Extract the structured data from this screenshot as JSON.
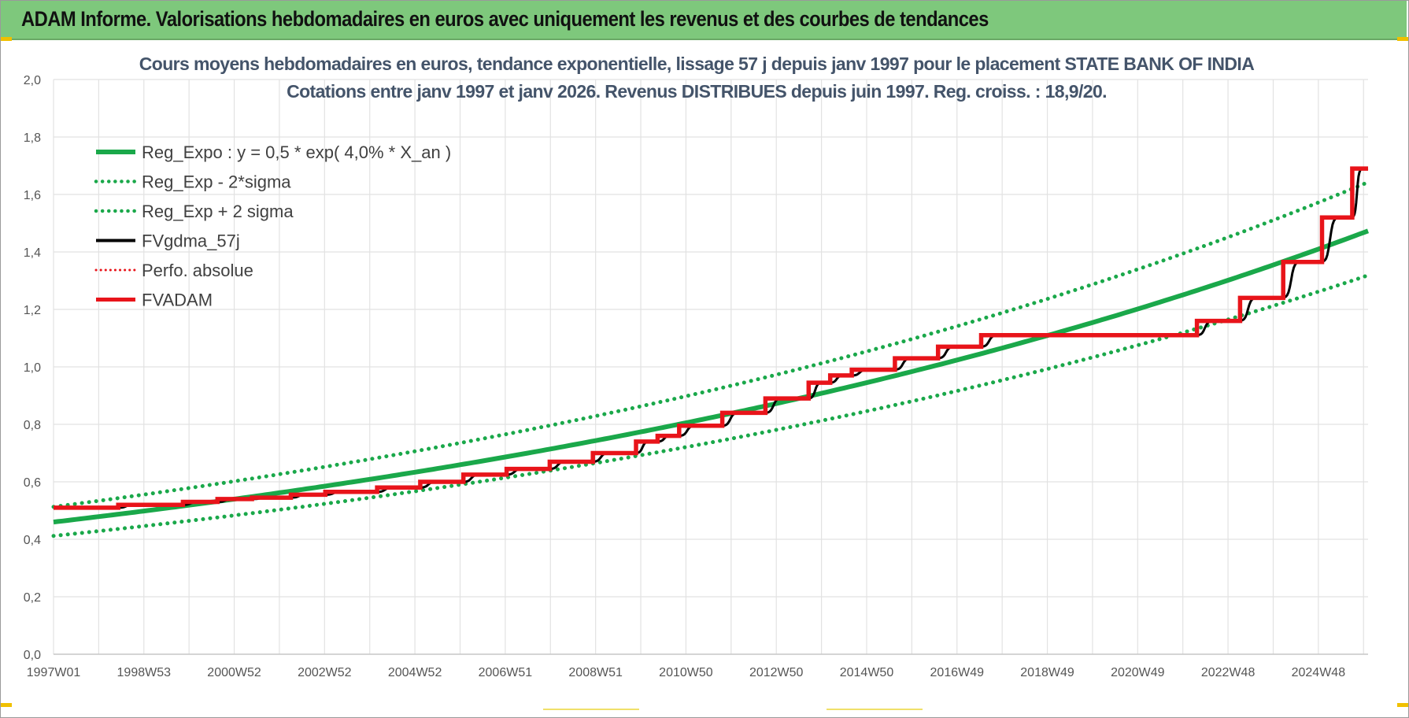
{
  "banner": {
    "title": "ADAM Informe. Valorisations hebdomadaires en euros avec uniquement les revenus et des courbes de tendances"
  },
  "colors": {
    "banner_bg": "#7ec87c",
    "reg_green": "#1aa84a",
    "black": "#000000",
    "red": "#e8141a",
    "grid": "#e2e2e2"
  },
  "chart_data": {
    "type": "line",
    "title": "Cours moyens hebdomadaires en euros, tendance exponentielle, lissage 57 j depuis janv 1997 pour le placement STATE BANK OF INDIA",
    "subtitle": "Cotations entre janv 1997 et janv 2026. Revenus DISTRIBUES depuis juin 1997. Reg. croiss. : 18,9/20.",
    "x_range": [
      1997.0,
      2026.1
    ],
    "x_ticks": [
      {
        "label": "1997W01",
        "x": 1997.0
      },
      {
        "label": "1998W53",
        "x": 1999.0
      },
      {
        "label": "2000W52",
        "x": 2001.0
      },
      {
        "label": "2002W52",
        "x": 2003.0
      },
      {
        "label": "2004W52",
        "x": 2005.0
      },
      {
        "label": "2006W51",
        "x": 2007.0
      },
      {
        "label": "2008W51",
        "x": 2009.0
      },
      {
        "label": "2010W50",
        "x": 2011.0
      },
      {
        "label": "2012W50",
        "x": 2013.0
      },
      {
        "label": "2014W50",
        "x": 2015.0
      },
      {
        "label": "2016W49",
        "x": 2017.0
      },
      {
        "label": "2018W49",
        "x": 2019.0
      },
      {
        "label": "2020W49",
        "x": 2021.0
      },
      {
        "label": "2022W48",
        "x": 2023.0
      },
      {
        "label": "2024W48",
        "x": 2025.0
      }
    ],
    "ylim": [
      0,
      2.0
    ],
    "y_ticks": [
      "0,0",
      "0,2",
      "0,4",
      "0,6",
      "0,8",
      "1,0",
      "1,2",
      "1,4",
      "1,6",
      "1,8",
      "2,0"
    ],
    "grid": true,
    "legend_position": "top-left",
    "regression": {
      "a": 0.46,
      "rate": 0.04,
      "sigma_factor_low": 0.895,
      "sigma_factor_high": 1.115
    },
    "series": [
      {
        "name": "Reg_Expo : y = 0,5 * exp( 4,0% *  X_an )",
        "style": "solid-green"
      },
      {
        "name": "Reg_Exp - 2*sigma",
        "style": "dotted-green"
      },
      {
        "name": "Reg_Exp + 2 sigma",
        "style": "dotted-green"
      },
      {
        "name": "FVgdma_57j",
        "style": "solid-black"
      },
      {
        "name": "Perfo. absolue",
        "style": "dotted-red"
      },
      {
        "name": "FVADAM",
        "style": "solid-red",
        "steps": [
          [
            1997.0,
            0.51
          ],
          [
            1998.5,
            0.52
          ],
          [
            2000.0,
            0.53
          ],
          [
            2000.8,
            0.54
          ],
          [
            2001.6,
            0.545
          ],
          [
            2002.5,
            0.555
          ],
          [
            2003.3,
            0.565
          ],
          [
            2004.5,
            0.58
          ],
          [
            2005.5,
            0.6
          ],
          [
            2006.5,
            0.625
          ],
          [
            2007.5,
            0.645
          ],
          [
            2008.5,
            0.67
          ],
          [
            2009.5,
            0.7
          ],
          [
            2010.5,
            0.74
          ],
          [
            2011.0,
            0.76
          ],
          [
            2011.5,
            0.795
          ],
          [
            2012.5,
            0.84
          ],
          [
            2013.5,
            0.89
          ],
          [
            2014.5,
            0.945
          ],
          [
            2015.0,
            0.97
          ],
          [
            2015.5,
            0.99
          ],
          [
            2016.5,
            1.03
          ],
          [
            2017.5,
            1.07
          ],
          [
            2018.5,
            1.11
          ],
          [
            2023.5,
            1.16
          ],
          [
            2024.5,
            1.24
          ],
          [
            2025.5,
            1.365
          ],
          [
            2026.4,
            1.52
          ],
          [
            2027.1,
            1.69
          ]
        ],
        "end_x": 2026.1
      }
    ]
  }
}
